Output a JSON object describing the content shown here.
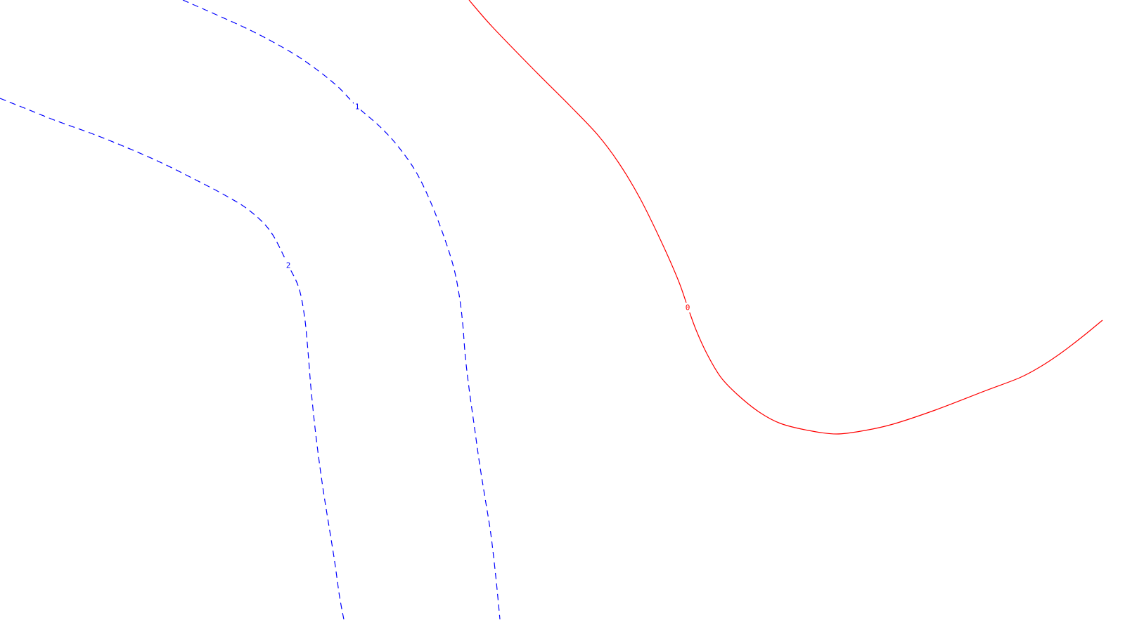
{
  "chart_data": {
    "type": "line",
    "series": [
      {
        "label": "0",
        "color": "#ff0000",
        "dash": false,
        "points": [
          [
            667,
            0
          ],
          [
            700,
            38
          ],
          [
            760,
            100
          ],
          [
            810,
            150
          ],
          [
            850,
            192
          ],
          [
            880,
            232
          ],
          [
            910,
            282
          ],
          [
            940,
            343
          ],
          [
            965,
            400
          ],
          [
            978,
            437
          ],
          [
            990,
            470
          ],
          [
            1005,
            503
          ],
          [
            1025,
            537
          ],
          [
            1050,
            563
          ],
          [
            1080,
            587
          ],
          [
            1110,
            603
          ],
          [
            1150,
            613
          ],
          [
            1190,
            618
          ],
          [
            1230,
            613
          ],
          [
            1270,
            604
          ],
          [
            1330,
            584
          ],
          [
            1400,
            557
          ],
          [
            1450,
            538
          ],
          [
            1480,
            522
          ],
          [
            1510,
            502
          ],
          [
            1540,
            479
          ],
          [
            1568,
            456
          ]
        ]
      },
      {
        "label": "1",
        "color": "#0000ff",
        "dash": true,
        "points": [
          [
            260,
            0
          ],
          [
            310,
            22
          ],
          [
            360,
            45
          ],
          [
            410,
            72
          ],
          [
            445,
            95
          ],
          [
            480,
            123
          ],
          [
            508,
            152
          ],
          [
            540,
            180
          ],
          [
            565,
            207
          ],
          [
            590,
            242
          ],
          [
            610,
            282
          ],
          [
            630,
            333
          ],
          [
            645,
            380
          ],
          [
            653,
            420
          ],
          [
            658,
            460
          ],
          [
            662,
            510
          ],
          [
            668,
            560
          ],
          [
            675,
            610
          ],
          [
            682,
            660
          ],
          [
            690,
            710
          ],
          [
            698,
            760
          ],
          [
            705,
            820
          ],
          [
            711,
            882
          ]
        ]
      },
      {
        "label": "2",
        "color": "#0000ff",
        "dash": true,
        "points": [
          [
            0,
            140
          ],
          [
            30,
            152
          ],
          [
            80,
            172
          ],
          [
            130,
            190
          ],
          [
            180,
            210
          ],
          [
            230,
            232
          ],
          [
            280,
            257
          ],
          [
            320,
            278
          ],
          [
            355,
            300
          ],
          [
            385,
            330
          ],
          [
            410,
            378
          ],
          [
            425,
            410
          ],
          [
            433,
            450
          ],
          [
            438,
            500
          ],
          [
            442,
            550
          ],
          [
            447,
            600
          ],
          [
            453,
            650
          ],
          [
            460,
            700
          ],
          [
            468,
            750
          ],
          [
            476,
            800
          ],
          [
            483,
            850
          ],
          [
            489,
            882
          ]
        ]
      }
    ],
    "labels": [
      {
        "text": "0",
        "x": 978,
        "y": 438,
        "color": "#ff0000"
      },
      {
        "text": "1",
        "x": 508,
        "y": 152,
        "color": "#0000ff"
      },
      {
        "text": "2",
        "x": 410,
        "y": 378,
        "color": "#0000ff"
      }
    ]
  }
}
